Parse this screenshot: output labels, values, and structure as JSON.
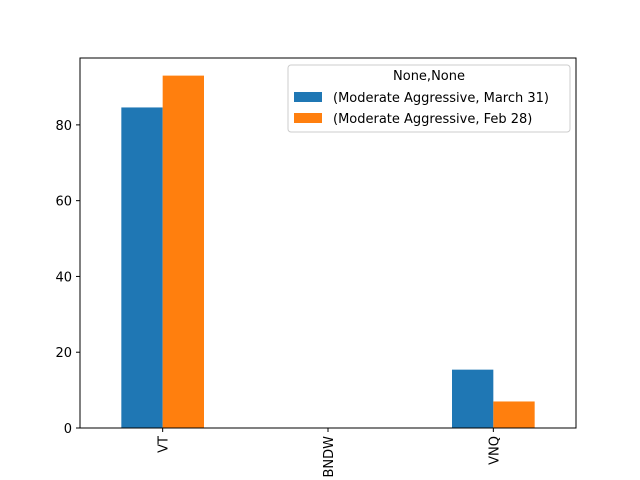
{
  "chart_data": {
    "type": "bar",
    "categories": [
      "VT",
      "BNDW",
      "VNQ"
    ],
    "series": [
      {
        "name": "(Moderate Aggressive, March 31)",
        "color": "#1f77b4",
        "values": [
          84.6,
          0,
          15.4
        ]
      },
      {
        "name": "(Moderate Aggressive, Feb 28)",
        "color": "#ff7f0e",
        "values": [
          93.0,
          0,
          7.0
        ]
      }
    ],
    "title": "",
    "xlabel": "",
    "ylabel": "",
    "ylim": [
      0,
      97.65
    ],
    "yticks": [
      0,
      20,
      40,
      60,
      80
    ],
    "legend": {
      "title": "None,None",
      "position": "top-right"
    },
    "grid": false,
    "tick_label_rotation": 90
  }
}
